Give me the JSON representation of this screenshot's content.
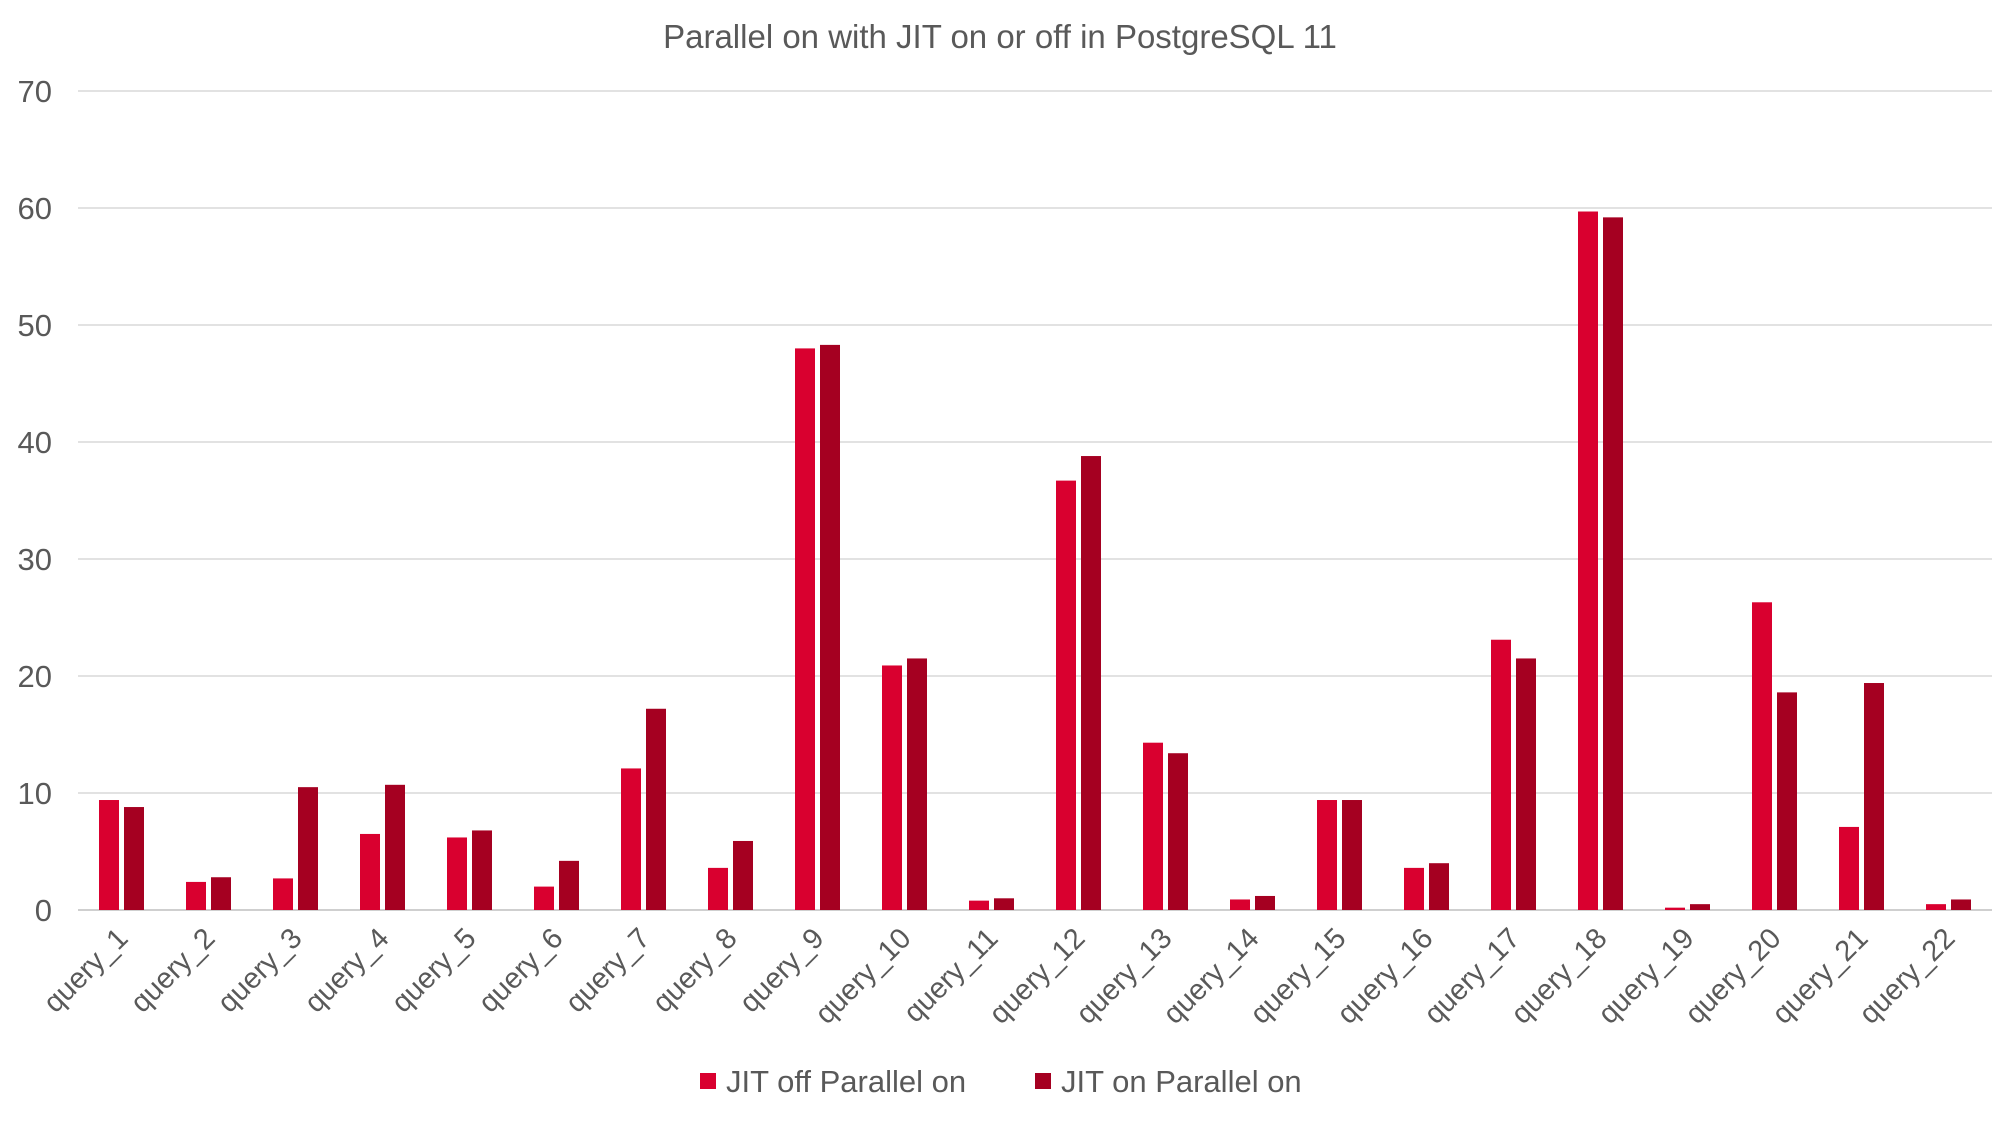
{
  "chart_data": {
    "type": "bar",
    "title": "Parallel on with JIT on or off in PostgreSQL 11",
    "xlabel": "",
    "ylabel": "",
    "ylim": [
      0,
      70
    ],
    "yticks": [
      0,
      10,
      20,
      30,
      40,
      50,
      60,
      70
    ],
    "grid": true,
    "legend_position": "bottom",
    "categories": [
      "query_1",
      "query_2",
      "query_3",
      "query_4",
      "query_5",
      "query_6",
      "query_7",
      "query_8",
      "query_9",
      "query_10",
      "query_11",
      "query_12",
      "query_13",
      "query_14",
      "query_15",
      "query_16",
      "query_17",
      "query_18",
      "query_19",
      "query_20",
      "query_21",
      "query_22"
    ],
    "series": [
      {
        "name": "JIT off Parallel on",
        "color": "#d9002f",
        "values": [
          9.4,
          2.4,
          2.7,
          6.5,
          6.2,
          2.0,
          12.1,
          3.6,
          48.0,
          20.9,
          0.8,
          36.7,
          14.3,
          0.9,
          9.4,
          3.6,
          23.1,
          59.7,
          0.2,
          26.3,
          7.1,
          0.5
        ]
      },
      {
        "name": "JIT on Parallel on",
        "color": "#a50021",
        "values": [
          8.8,
          2.8,
          10.5,
          10.7,
          6.8,
          4.2,
          17.2,
          5.9,
          48.3,
          21.5,
          1.0,
          38.8,
          13.4,
          1.2,
          9.4,
          4.0,
          21.5,
          59.2,
          0.5,
          18.6,
          19.4,
          0.9
        ]
      }
    ]
  }
}
